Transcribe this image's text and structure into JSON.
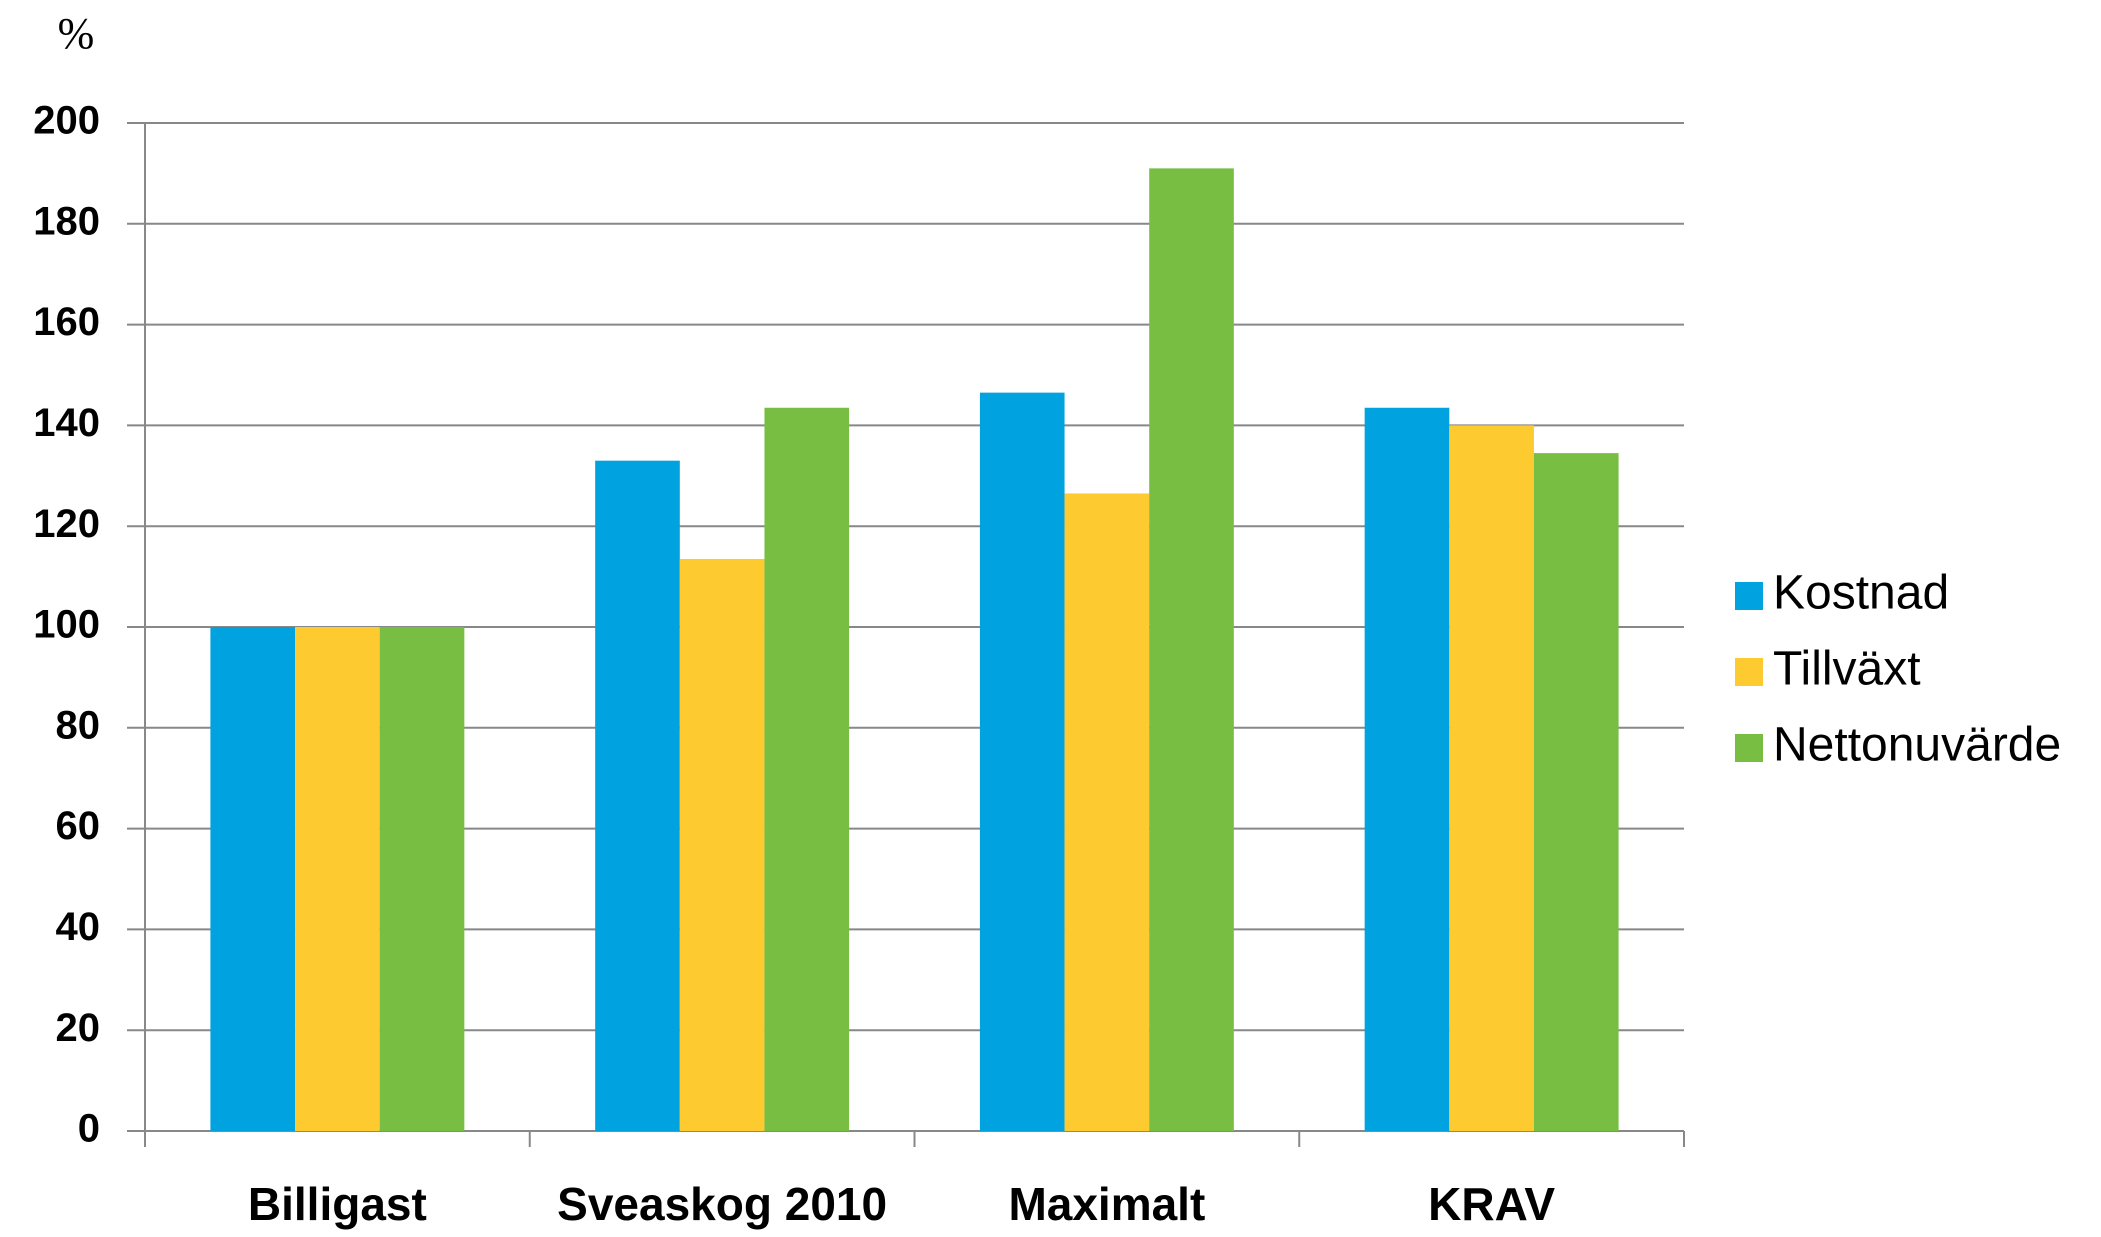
{
  "chart_data": {
    "type": "bar",
    "y_label": "%",
    "categories": [
      "Billigast",
      "Sveaskog 2010",
      "Maximalt",
      "KRAV"
    ],
    "series": [
      {
        "name": "Kostnad",
        "color": "#00a3e0",
        "values": [
          100,
          133,
          146.5,
          143.5
        ]
      },
      {
        "name": "Tillväxt",
        "color": "#fdca2f",
        "values": [
          100,
          113.5,
          126.5,
          140
        ]
      },
      {
        "name": "Nettonuvärde",
        "color": "#78be43",
        "values": [
          100,
          143.5,
          191,
          134.5
        ]
      }
    ],
    "ylim": [
      0,
      200
    ],
    "yticks": [
      0,
      20,
      40,
      60,
      80,
      100,
      120,
      140,
      160,
      180,
      200
    ],
    "grid": true,
    "legend": "right"
  }
}
